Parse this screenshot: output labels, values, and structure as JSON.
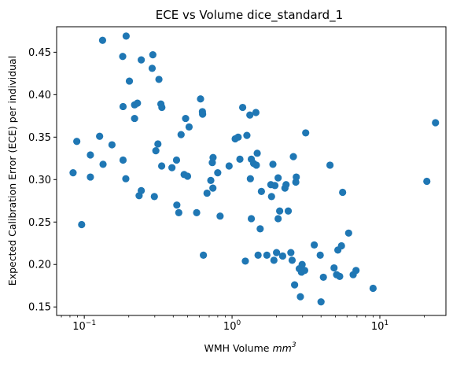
{
  "chart_data": {
    "type": "scatter",
    "title": "ECE vs Volume dice_standard_1",
    "xlabel": "WMH Volume",
    "xlabel_unit": "mm",
    "xlabel_unit_exp": "3",
    "ylabel": "Expected Calibration Error (ECE) per individual",
    "xscale": "log",
    "xlim": [
      0.065,
      28
    ],
    "ylim": [
      0.14,
      0.48
    ],
    "x_ticks": [
      {
        "value": 0.1,
        "base": "10",
        "exp": "−1"
      },
      {
        "value": 1,
        "base": "10",
        "exp": "0"
      },
      {
        "value": 10,
        "base": "10",
        "exp": "1"
      }
    ],
    "y_ticks": [
      "0.15",
      "0.20",
      "0.25",
      "0.30",
      "0.35",
      "0.40",
      "0.45"
    ],
    "marker_color": "#1f77b4",
    "grid": false,
    "points": [
      [
        0.133,
        0.464
      ],
      [
        0.192,
        0.469
      ],
      [
        0.182,
        0.445
      ],
      [
        0.243,
        0.441
      ],
      [
        0.291,
        0.447
      ],
      [
        0.288,
        0.431
      ],
      [
        0.202,
        0.416
      ],
      [
        0.32,
        0.418
      ],
      [
        0.183,
        0.386
      ],
      [
        0.219,
        0.388
      ],
      [
        0.229,
        0.39
      ],
      [
        0.33,
        0.389
      ],
      [
        0.335,
        0.385
      ],
      [
        0.219,
        0.372
      ],
      [
        0.084,
        0.308
      ],
      [
        0.089,
        0.345
      ],
      [
        0.096,
        0.247
      ],
      [
        0.11,
        0.329
      ],
      [
        0.11,
        0.303
      ],
      [
        0.127,
        0.351
      ],
      [
        0.134,
        0.318
      ],
      [
        0.154,
        0.341
      ],
      [
        0.183,
        0.323
      ],
      [
        0.191,
        0.301
      ],
      [
        0.235,
        0.281
      ],
      [
        0.243,
        0.287
      ],
      [
        0.298,
        0.28
      ],
      [
        0.305,
        0.334
      ],
      [
        0.315,
        0.342
      ],
      [
        0.334,
        0.316
      ],
      [
        0.392,
        0.314
      ],
      [
        0.421,
        0.323
      ],
      [
        0.423,
        0.27
      ],
      [
        0.436,
        0.261
      ],
      [
        0.452,
        0.353
      ],
      [
        0.474,
        0.306
      ],
      [
        0.485,
        0.372
      ],
      [
        0.512,
        0.362
      ],
      [
        0.5,
        0.304
      ],
      [
        0.576,
        0.261
      ],
      [
        0.612,
        0.395
      ],
      [
        0.63,
        0.38
      ],
      [
        0.632,
        0.377
      ],
      [
        0.64,
        0.211
      ],
      [
        0.677,
        0.284
      ],
      [
        0.718,
        0.299
      ],
      [
        0.735,
        0.32
      ],
      [
        0.744,
        0.326
      ],
      [
        0.742,
        0.29
      ],
      [
        0.8,
        0.308
      ],
      [
        0.83,
        0.257
      ],
      [
        0.955,
        0.316
      ],
      [
        1.05,
        0.348
      ],
      [
        1.1,
        0.35
      ],
      [
        1.13,
        0.324
      ],
      [
        1.18,
        0.385
      ],
      [
        1.23,
        0.204
      ],
      [
        1.26,
        0.352
      ],
      [
        1.32,
        0.376
      ],
      [
        1.35,
        0.324
      ],
      [
        1.33,
        0.301
      ],
      [
        1.4,
        0.319
      ],
      [
        1.45,
        0.379
      ],
      [
        1.48,
        0.331
      ],
      [
        1.5,
        0.211
      ],
      [
        1.46,
        0.317
      ],
      [
        1.35,
        0.254
      ],
      [
        1.58,
        0.286
      ],
      [
        1.55,
        0.242
      ],
      [
        1.72,
        0.211
      ],
      [
        1.83,
        0.294
      ],
      [
        1.85,
        0.28
      ],
      [
        1.89,
        0.318
      ],
      [
        1.92,
        0.205
      ],
      [
        1.95,
        0.293
      ],
      [
        2.0,
        0.214
      ],
      [
        2.05,
        0.302
      ],
      [
        2.1,
        0.263
      ],
      [
        2.05,
        0.254
      ],
      [
        2.2,
        0.21
      ],
      [
        2.28,
        0.29
      ],
      [
        2.32,
        0.294
      ],
      [
        2.4,
        0.263
      ],
      [
        2.5,
        0.214
      ],
      [
        2.55,
        0.205
      ],
      [
        2.6,
        0.327
      ],
      [
        2.7,
        0.297
      ],
      [
        2.72,
        0.303
      ],
      [
        2.65,
        0.176
      ],
      [
        2.85,
        0.195
      ],
      [
        2.9,
        0.162
      ],
      [
        2.95,
        0.191
      ],
      [
        2.98,
        0.2
      ],
      [
        3.1,
        0.193
      ],
      [
        3.15,
        0.355
      ],
      [
        3.6,
        0.223
      ],
      [
        3.95,
        0.211
      ],
      [
        4.0,
        0.156
      ],
      [
        4.15,
        0.185
      ],
      [
        4.6,
        0.317
      ],
      [
        4.9,
        0.196
      ],
      [
        5.1,
        0.188
      ],
      [
        5.2,
        0.217
      ],
      [
        5.35,
        0.186
      ],
      [
        5.5,
        0.222
      ],
      [
        5.6,
        0.285
      ],
      [
        6.15,
        0.237
      ],
      [
        6.6,
        0.188
      ],
      [
        6.9,
        0.193
      ],
      [
        9.0,
        0.172
      ],
      [
        20.8,
        0.298
      ],
      [
        23.8,
        0.367
      ]
    ]
  }
}
